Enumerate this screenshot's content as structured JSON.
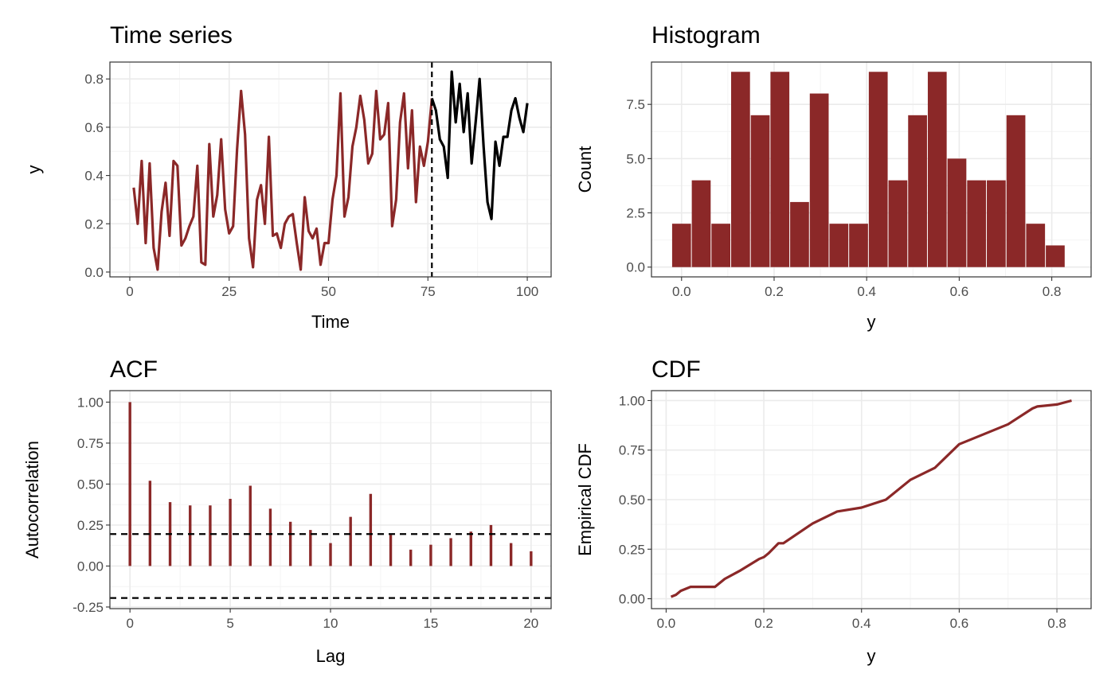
{
  "colors": {
    "series": "#8B2828",
    "forecast": "#000000",
    "grid_major": "#EBEBEB",
    "grid_minor": "#F4F4F4",
    "panel_border": "#333333"
  },
  "chart_data": [
    {
      "type": "line",
      "title": "Time series",
      "xlabel": "Time",
      "ylabel": "y",
      "xlim": [
        -5,
        106
      ],
      "ylim": [
        -0.02,
        0.87
      ],
      "xticks": [
        0,
        25,
        50,
        75,
        100
      ],
      "xtick_labels": [
        "0",
        "25",
        "50",
        "75",
        "100"
      ],
      "yticks": [
        0.0,
        0.2,
        0.4,
        0.6,
        0.8
      ],
      "ytick_labels": [
        "0.0",
        "0.2",
        "0.4",
        "0.6",
        "0.8"
      ],
      "grid": true,
      "vline": 76,
      "series": [
        {
          "role": "observed",
          "x": [
            1,
            2,
            3,
            4,
            5,
            6,
            7,
            8,
            9,
            10,
            11,
            12,
            13,
            14,
            15,
            16,
            17,
            18,
            19,
            20,
            21,
            22,
            23,
            24,
            25,
            26,
            27,
            28,
            29,
            30,
            31,
            32,
            33,
            34,
            35,
            36,
            37,
            38,
            39,
            40,
            41,
            42,
            43,
            44,
            45,
            46,
            47,
            48,
            49,
            50,
            51,
            52,
            53,
            54,
            55,
            56,
            57,
            58,
            59,
            60,
            61,
            62,
            63,
            64,
            65,
            66,
            67,
            68,
            69,
            70,
            71,
            72,
            73,
            74,
            75,
            76
          ],
          "y": [
            0.35,
            0.2,
            0.46,
            0.12,
            0.45,
            0.1,
            0.01,
            0.25,
            0.37,
            0.15,
            0.46,
            0.44,
            0.11,
            0.14,
            0.19,
            0.23,
            0.44,
            0.04,
            0.03,
            0.53,
            0.23,
            0.32,
            0.55,
            0.26,
            0.16,
            0.19,
            0.51,
            0.75,
            0.57,
            0.14,
            0.02,
            0.3,
            0.36,
            0.2,
            0.56,
            0.15,
            0.16,
            0.1,
            0.2,
            0.23,
            0.24,
            0.12,
            0.01,
            0.31,
            0.17,
            0.14,
            0.18,
            0.03,
            0.12,
            0.12,
            0.3,
            0.4,
            0.74,
            0.23,
            0.31,
            0.52,
            0.6,
            0.73,
            0.63,
            0.45,
            0.49,
            0.75,
            0.55,
            0.57,
            0.7,
            0.19,
            0.3,
            0.62,
            0.74,
            0.43,
            0.67,
            0.29,
            0.52,
            0.44,
            0.54,
            0.72
          ]
        },
        {
          "role": "future",
          "x": [
            76,
            77,
            78,
            79,
            80,
            81,
            82,
            83,
            84,
            85,
            86,
            87,
            88,
            89,
            90,
            91,
            92,
            93,
            94,
            95,
            96,
            97,
            98,
            99,
            100
          ],
          "y": [
            0.72,
            0.67,
            0.55,
            0.52,
            0.39,
            0.83,
            0.62,
            0.78,
            0.58,
            0.74,
            0.45,
            0.62,
            0.8,
            0.52,
            0.29,
            0.22,
            0.54,
            0.44,
            0.56,
            0.56,
            0.67,
            0.72,
            0.64,
            0.58,
            0.7
          ]
        }
      ]
    },
    {
      "type": "bar",
      "title": "Histogram",
      "xlabel": "y",
      "ylabel": "Count",
      "xlim": [
        -0.065,
        0.885
      ],
      "ylim": [
        -0.45,
        9.45
      ],
      "xticks": [
        0.0,
        0.2,
        0.4,
        0.6,
        0.8
      ],
      "xtick_labels": [
        "0.0",
        "0.2",
        "0.4",
        "0.6",
        "0.8"
      ],
      "yticks": [
        0.0,
        2.5,
        5.0,
        7.5
      ],
      "ytick_labels": [
        "0.0",
        "2.5",
        "5.0",
        "7.5"
      ],
      "grid": true,
      "bin_width": 0.0425,
      "bin_centers": [
        0.0,
        0.0425,
        0.085,
        0.1275,
        0.17,
        0.2125,
        0.255,
        0.2975,
        0.34,
        0.3825,
        0.425,
        0.4675,
        0.51,
        0.5525,
        0.595,
        0.6375,
        0.68,
        0.7225,
        0.765,
        0.8075
      ],
      "values": [
        2,
        4,
        2,
        9,
        7,
        9,
        3,
        8,
        2,
        2,
        9,
        4,
        7,
        9,
        5,
        4,
        4,
        7,
        2,
        1
      ]
    },
    {
      "type": "bar",
      "title": "ACF",
      "xlabel": "Lag",
      "ylabel": "Autocorrelation",
      "xlim": [
        -1,
        21
      ],
      "ylim": [
        -0.26,
        1.07
      ],
      "xticks": [
        0,
        5,
        10,
        15,
        20
      ],
      "xtick_labels": [
        "0",
        "5",
        "10",
        "15",
        "20"
      ],
      "yticks": [
        -0.25,
        0.0,
        0.25,
        0.5,
        0.75,
        1.0
      ],
      "ytick_labels": [
        "-0.25",
        "0.00",
        "0.25",
        "0.50",
        "0.75",
        "1.00"
      ],
      "grid": true,
      "lags": [
        0,
        1,
        2,
        3,
        4,
        5,
        6,
        7,
        8,
        9,
        10,
        11,
        12,
        13,
        14,
        15,
        16,
        17,
        18,
        19,
        20
      ],
      "values": [
        1.0,
        0.52,
        0.39,
        0.37,
        0.37,
        0.41,
        0.49,
        0.35,
        0.27,
        0.22,
        0.14,
        0.3,
        0.44,
        0.19,
        0.1,
        0.13,
        0.17,
        0.21,
        0.25,
        0.14,
        0.09
      ],
      "confidence_bounds": [
        0.195,
        -0.195
      ]
    },
    {
      "type": "line",
      "title": "CDF",
      "xlabel": "y",
      "ylabel": "Empirical CDF",
      "xlim": [
        -0.03,
        0.87
      ],
      "ylim": [
        -0.05,
        1.05
      ],
      "xticks": [
        0.0,
        0.2,
        0.4,
        0.6,
        0.8
      ],
      "xtick_labels": [
        "0.0",
        "0.2",
        "0.4",
        "0.6",
        "0.8"
      ],
      "yticks": [
        0.0,
        0.25,
        0.5,
        0.75,
        1.0
      ],
      "ytick_labels": [
        "0.00",
        "0.25",
        "0.50",
        "0.75",
        "1.00"
      ],
      "grid": true,
      "x": [
        0.01,
        0.02,
        0.03,
        0.05,
        0.1,
        0.12,
        0.15,
        0.19,
        0.2,
        0.21,
        0.23,
        0.24,
        0.3,
        0.35,
        0.4,
        0.45,
        0.5,
        0.55,
        0.6,
        0.62,
        0.65,
        0.7,
        0.75,
        0.76,
        0.8,
        0.83
      ],
      "y": [
        0.01,
        0.02,
        0.04,
        0.06,
        0.06,
        0.1,
        0.14,
        0.2,
        0.21,
        0.23,
        0.28,
        0.28,
        0.38,
        0.44,
        0.46,
        0.5,
        0.6,
        0.66,
        0.78,
        0.8,
        0.83,
        0.88,
        0.96,
        0.97,
        0.98,
        1.0
      ]
    }
  ]
}
